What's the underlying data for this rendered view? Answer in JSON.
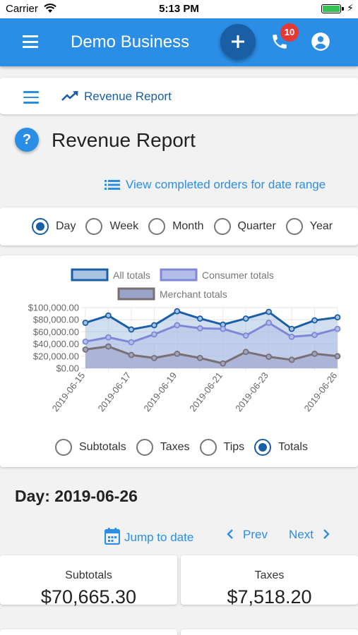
{
  "status_bar": {
    "carrier": "Carrier",
    "time": "5:13 PM"
  },
  "app_bar": {
    "title": "Demo Business",
    "notification_count": "10"
  },
  "breadcrumb": {
    "label": "Revenue Report"
  },
  "page": {
    "title": "Revenue Report",
    "help_label": "?"
  },
  "view_orders_link": "View completed orders for date range",
  "period_options": [
    {
      "label": "Day",
      "checked": true
    },
    {
      "label": "Week",
      "checked": false
    },
    {
      "label": "Month",
      "checked": false
    },
    {
      "label": "Quarter",
      "checked": false
    },
    {
      "label": "Year",
      "checked": false
    }
  ],
  "metric_options": [
    {
      "label": "Subtotals",
      "checked": false
    },
    {
      "label": "Taxes",
      "checked": false
    },
    {
      "label": "Tips",
      "checked": false
    },
    {
      "label": "Totals",
      "checked": true
    }
  ],
  "chart_data": {
    "type": "line",
    "x": [
      "2019-06-15",
      "2019-06-16",
      "2019-06-17",
      "2019-06-18",
      "2019-06-19",
      "2019-06-20",
      "2019-06-21",
      "2019-06-22",
      "2019-06-23",
      "2019-06-24",
      "2019-06-25",
      "2019-06-26"
    ],
    "x_tick_labels": [
      "2019-06-15",
      "2019-06-17",
      "2019-06-19",
      "2019-06-21",
      "2019-06-23",
      "2019-06-26"
    ],
    "y_tick_labels": [
      "$100,000.00",
      "$80,000.00",
      "$60,000.00",
      "$40,000.00",
      "$20,000.00",
      "$0.00"
    ],
    "ylim": [
      0,
      100000
    ],
    "legend_position": "top",
    "grid": true,
    "series": [
      {
        "name": "All totals",
        "stroke": "#1a5fa6",
        "fill": "#a9c3e2",
        "values": [
          75000,
          87000,
          64000,
          71000,
          94000,
          82000,
          72000,
          82000,
          93000,
          65000,
          79000,
          84000
        ]
      },
      {
        "name": "Consumer totals",
        "stroke": "#7f88d8",
        "fill": "#b3bfe8",
        "values": [
          44000,
          51000,
          43000,
          56000,
          71000,
          66000,
          65000,
          54000,
          75000,
          52000,
          55000,
          65000
        ]
      },
      {
        "name": "Merchant totals",
        "stroke": "#7a6f72",
        "fill": "#9aa3c8",
        "values": [
          31000,
          36000,
          22000,
          17000,
          24000,
          17000,
          8000,
          27000,
          19000,
          14000,
          24000,
          20000
        ]
      }
    ]
  },
  "selected_day": {
    "label": "Day:",
    "date": "2019-06-26"
  },
  "navigation": {
    "jump": "Jump to date",
    "prev": "Prev",
    "next": "Next"
  },
  "stats": [
    {
      "label": "Subtotals",
      "value": "$70,665.30"
    },
    {
      "label": "Taxes",
      "value": "$7,518.20"
    }
  ],
  "colors": {
    "primary": "#2b8ee6",
    "primary_dark": "#1a5fa6",
    "badge": "#e53935"
  }
}
